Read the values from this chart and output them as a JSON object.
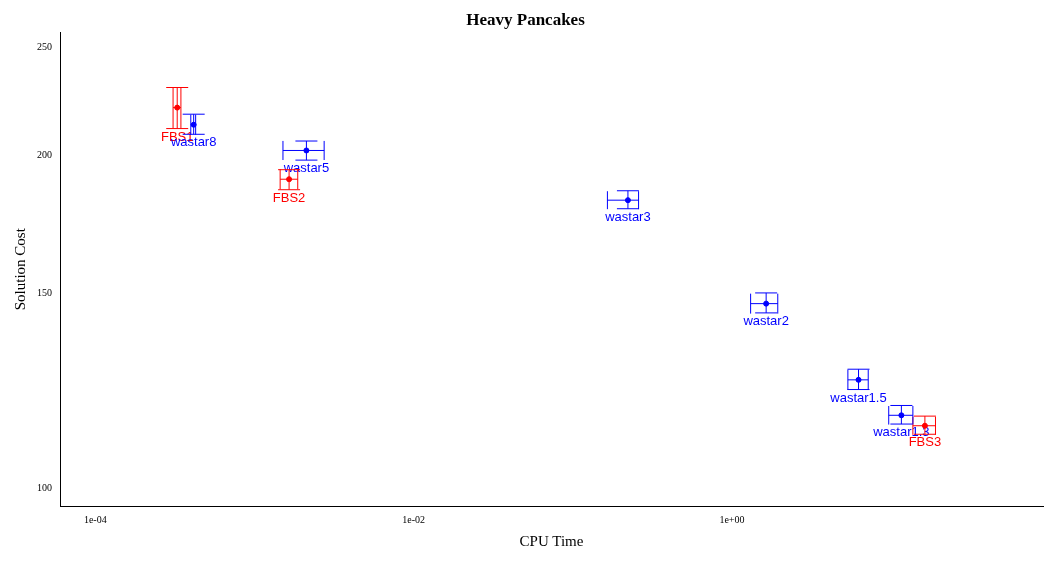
{
  "chart_data": {
    "type": "scatter",
    "title": "Heavy Pancakes",
    "xlabel": "CPU Time",
    "ylabel": "Solution Cost",
    "log": "xy",
    "grid": false,
    "legend": false,
    "marker": "circle",
    "xlim": [
      6e-05,
      90
    ],
    "ylim": [
      96.5,
      258
    ],
    "xticks": [
      {
        "value": 0.0001,
        "label": "1e-04"
      },
      {
        "value": 0.01,
        "label": "1e-02"
      },
      {
        "value": 1,
        "label": "1e+00"
      }
    ],
    "yticks": [
      100,
      150,
      200,
      250
    ],
    "series": [
      {
        "color": "#ff0000",
        "x": [
          0.000327,
          0.00165,
          16.3
        ],
        "values": [
          220.7,
          190.2,
          114.0
        ],
        "xerrors": [
          [
            0.000308,
            0.000345
          ],
          [
            0.00145,
            0.00187
          ],
          [
            13.7,
            19.0
          ]
        ],
        "errors": [
          [
            211.3,
            230.1
          ],
          [
            186.1,
            194.0
          ],
          [
            112.0,
            116.3
          ]
        ]
      },
      {
        "color": "#0000ff",
        "x": [
          0.000415,
          0.00212,
          0.222,
          1.64,
          6.24,
          11.6
        ],
        "values": [
          213.0,
          201.9,
          182.1,
          146.9,
          125.4,
          116.5
        ],
        "xerrors": [
          [
            0.000398,
            0.000427
          ],
          [
            0.00151,
            0.00274
          ],
          [
            0.165,
            0.259
          ],
          [
            1.31,
            1.94
          ],
          [
            5.35,
            7.18
          ],
          [
            9.66,
            13.7
          ]
        ],
        "errors": [
          [
            208.8,
            217.7
          ],
          [
            197.9,
            205.9
          ],
          [
            178.9,
            185.7
          ],
          [
            144.1,
            150.2
          ],
          [
            122.9,
            128.2
          ],
          [
            114.4,
            118.9
          ]
        ]
      }
    ],
    "annotations": [
      {
        "text": "FBS1",
        "x": 0.000327,
        "y": 220.7
      },
      {
        "text": "FBS2",
        "x": 0.00165,
        "y": 190.2
      },
      {
        "text": "FBS3",
        "x": 16.3,
        "y": 114.0
      },
      {
        "text": "wastar8",
        "x": 0.000415,
        "y": 213.0
      },
      {
        "text": "wastar5",
        "x": 0.00212,
        "y": 201.9
      },
      {
        "text": "wastar3",
        "x": 0.222,
        "y": 182.1
      },
      {
        "text": "wastar2",
        "x": 1.64,
        "y": 146.9
      },
      {
        "text": "wastar1.5",
        "x": 6.24,
        "y": 125.4
      },
      {
        "text": "wastar1.3",
        "x": 11.6,
        "y": 116.5
      }
    ]
  }
}
